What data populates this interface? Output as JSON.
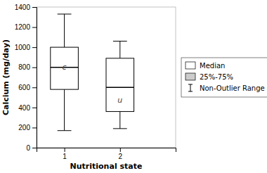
{
  "chart_data": {
    "type": "box",
    "xlabel": "Nutritional state",
    "ylabel": "Calcium (mg/day)",
    "x": [
      1,
      2
    ],
    "whisker_low": [
      170,
      190
    ],
    "q1": [
      580,
      360
    ],
    "median": [
      800,
      600
    ],
    "q3": [
      1000,
      890
    ],
    "whisker_high": [
      1330,
      1060
    ],
    "annotations": [
      {
        "text": "c",
        "x": 1,
        "y": 800
      },
      {
        "text": "u",
        "x": 2,
        "y": 470
      }
    ],
    "xlim": [
      0.5,
      3.0
    ],
    "xticks": [
      1,
      2
    ],
    "ylim": [
      0,
      1400
    ],
    "yticks": [
      0,
      200,
      400,
      600,
      800,
      1000,
      1200,
      1400
    ],
    "color": "#000000",
    "grid": false,
    "legend": "right",
    "legend_entries": [
      "Median",
      "25%-75%",
      "Non-Outlier Range"
    ]
  }
}
